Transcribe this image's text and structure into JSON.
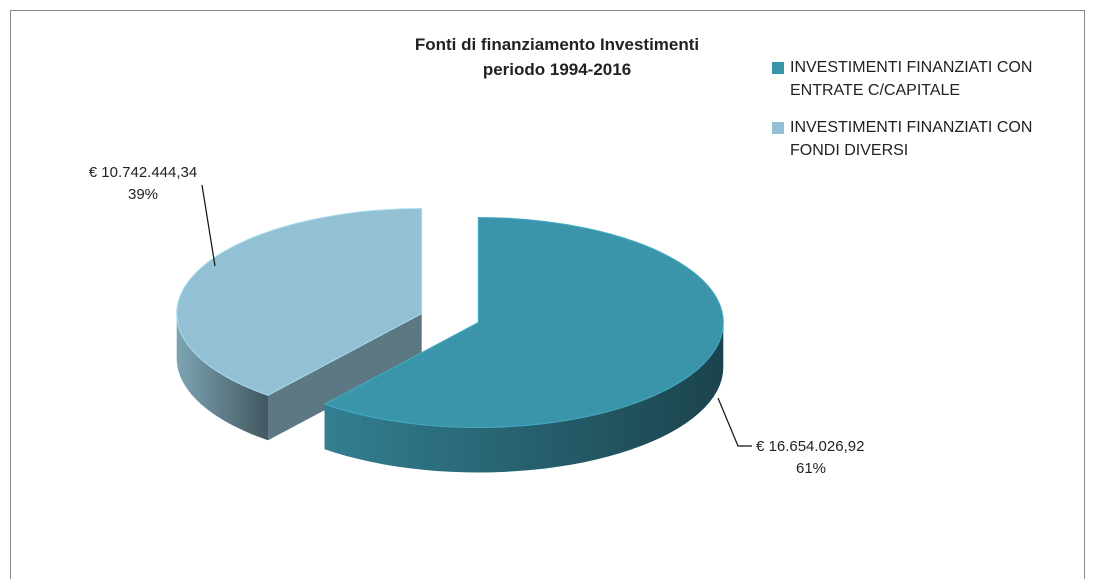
{
  "chart_data": {
    "type": "pie",
    "title": [
      "Fonti di finanziamento Investimenti",
      "periodo 1994-2016"
    ],
    "categories": [
      "INVESTIMENTI FINANZIATI CON ENTRATE C/CAPITALE",
      "INVESTIMENTI FINANZIATI CON FONDI DIVERSI"
    ],
    "values": [
      16654026.92,
      10742444.34
    ],
    "value_labels": [
      "€ 16.654.026,92",
      "€ 10.742.444,34"
    ],
    "percents": [
      61,
      39
    ],
    "percent_labels": [
      "61%",
      "39%"
    ],
    "colors": [
      "#3b95aa",
      "#93c1d3"
    ],
    "legend": "right"
  }
}
